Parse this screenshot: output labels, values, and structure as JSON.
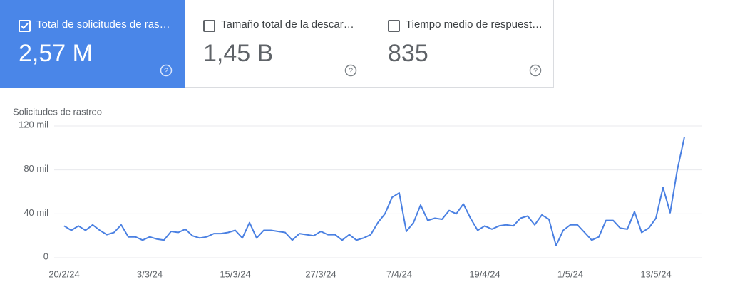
{
  "cards": [
    {
      "label": "Total de solicitudes de ras…",
      "value": "2,57 M"
    },
    {
      "label": "Tamaño total de la descar…",
      "value": "1,45 B"
    },
    {
      "label": "Tiempo medio de respuest…",
      "value": "835"
    }
  ],
  "chart_data": {
    "type": "line",
    "title": "Solicitudes de rastreo",
    "color": "#4a80e2",
    "grid": true,
    "x": [
      "20/2/24",
      "21/2/24",
      "22/2/24",
      "23/2/24",
      "24/2/24",
      "25/2/24",
      "26/2/24",
      "27/2/24",
      "28/2/24",
      "29/2/24",
      "1/3/24",
      "2/3/24",
      "3/3/24",
      "4/3/24",
      "5/3/24",
      "6/3/24",
      "7/3/24",
      "8/3/24",
      "9/3/24",
      "10/3/24",
      "11/3/24",
      "12/3/24",
      "13/3/24",
      "14/3/24",
      "15/3/24",
      "16/3/24",
      "17/3/24",
      "18/3/24",
      "19/3/24",
      "20/3/24",
      "21/3/24",
      "22/3/24",
      "23/3/24",
      "24/3/24",
      "25/3/24",
      "26/3/24",
      "27/3/24",
      "28/3/24",
      "29/3/24",
      "30/3/24",
      "31/3/24",
      "1/4/24",
      "2/4/24",
      "3/4/24",
      "4/4/24",
      "5/4/24",
      "6/4/24",
      "7/4/24",
      "8/4/24",
      "9/4/24",
      "10/4/24",
      "11/4/24",
      "12/4/24",
      "13/4/24",
      "14/4/24",
      "15/4/24",
      "16/4/24",
      "17/4/24",
      "18/4/24",
      "19/4/24",
      "20/4/24",
      "21/4/24",
      "22/4/24",
      "23/4/24",
      "24/4/24",
      "25/4/24",
      "26/4/24",
      "27/4/24",
      "28/4/24",
      "29/4/24",
      "30/4/24",
      "1/5/24",
      "2/5/24",
      "3/5/24",
      "4/5/24",
      "5/5/24",
      "6/5/24",
      "7/5/24",
      "8/5/24",
      "9/5/24",
      "10/5/24",
      "11/5/24",
      "12/5/24",
      "13/5/24",
      "14/5/24",
      "15/5/24",
      "16/5/24",
      "17/5/24"
    ],
    "values": [
      29000,
      25000,
      29000,
      25000,
      30000,
      25000,
      21000,
      23000,
      30000,
      19000,
      19000,
      16000,
      19000,
      17000,
      16000,
      24000,
      23000,
      26000,
      20000,
      18000,
      19000,
      22000,
      22000,
      23000,
      25000,
      18000,
      32000,
      18000,
      25000,
      25000,
      24000,
      23000,
      16000,
      22000,
      21000,
      20000,
      24000,
      21000,
      21000,
      16000,
      21000,
      16000,
      18000,
      21000,
      32000,
      40000,
      55000,
      59000,
      24000,
      32000,
      48000,
      34000,
      36000,
      35000,
      43000,
      40000,
      49000,
      36000,
      25000,
      29000,
      26000,
      29000,
      30000,
      29000,
      36000,
      38000,
      30000,
      39000,
      35000,
      11000,
      25000,
      30000,
      30000,
      23000,
      16000,
      19000,
      34000,
      34000,
      27000,
      26000,
      42000,
      23000,
      27000,
      36000,
      64000,
      41000,
      80000,
      110000
    ],
    "xticks": [
      "20/2/24",
      "3/3/24",
      "15/3/24",
      "27/3/24",
      "7/4/24",
      "19/4/24",
      "1/5/24",
      "13/5/24"
    ],
    "ylim": [
      0,
      120000
    ],
    "yticks": [
      0,
      {
        "value": 40000,
        "label": "40 mil"
      },
      {
        "value": 80000,
        "label": "80 mil"
      },
      {
        "value": 120000,
        "label": "120 mil"
      }
    ]
  }
}
